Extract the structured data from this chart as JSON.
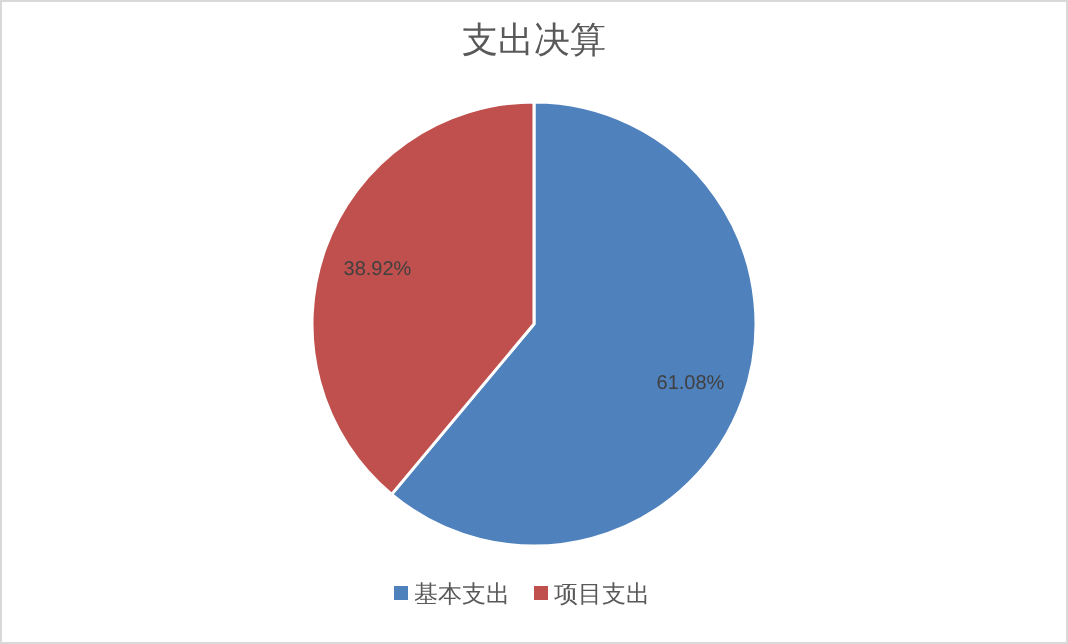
{
  "chart_data": {
    "type": "pie",
    "title": "支出决算",
    "categories": [
      "基本支出",
      "项目支出"
    ],
    "values": [
      61.08,
      38.92
    ],
    "colors": [
      "#4f81bd",
      "#c0504d"
    ],
    "value_labels": [
      "61.08%",
      "38.92%"
    ],
    "legend": "bottom"
  }
}
